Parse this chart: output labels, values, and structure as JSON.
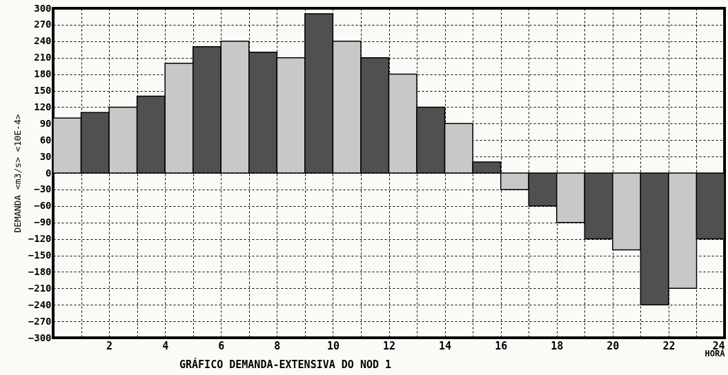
{
  "chart_data": {
    "type": "histogram",
    "title": "GRÁFICO DEMANDA-EXTENSIVA DO NOD 1",
    "xlabel": "HORA",
    "ylabel": "DEMANDA  <m3/s>  <10E-4>",
    "bins": [
      0,
      1,
      2,
      3,
      4,
      5,
      6,
      7,
      8,
      9,
      10,
      11,
      12,
      13,
      14,
      15,
      16,
      17,
      18,
      19,
      20,
      21,
      22,
      23,
      24
    ],
    "values": [
      100,
      110,
      120,
      140,
      200,
      230,
      240,
      220,
      210,
      290,
      240,
      210,
      180,
      120,
      90,
      20,
      -30,
      -60,
      -90,
      -120,
      -140,
      -240,
      -210,
      -120
    ],
    "colors": [
      "#c8c8c8",
      "#505050",
      "#c8c8c8",
      "#505050",
      "#c8c8c8",
      "#505050",
      "#c8c8c8",
      "#505050",
      "#c8c8c8",
      "#505050",
      "#c8c8c8",
      "#505050",
      "#c8c8c8",
      "#505050",
      "#c8c8c8",
      "#505050",
      "#c8c8c8",
      "#505050",
      "#c8c8c8",
      "#505050",
      "#c8c8c8",
      "#505050",
      "#c8c8c8",
      "#505050"
    ],
    "xlim": [
      0,
      24
    ],
    "xticks": [
      {
        "value": 0,
        "label": null
      },
      {
        "value": 1,
        "label": null
      },
      2,
      {
        "value": 3,
        "label": null
      },
      4,
      {
        "value": 5,
        "label": null
      },
      6,
      {
        "value": 7,
        "label": null
      },
      8,
      {
        "value": 9,
        "label": null
      },
      10,
      {
        "value": 11,
        "label": null
      },
      12,
      {
        "value": 13,
        "label": null
      },
      14,
      {
        "value": 15,
        "label": null
      },
      16,
      {
        "value": 17,
        "label": null
      },
      18,
      {
        "value": 19,
        "label": null
      },
      20,
      {
        "value": 21,
        "label": null
      },
      22,
      {
        "value": 23,
        "label": null
      },
      24
    ],
    "ylim": [
      -300,
      300
    ],
    "yticks": [
      -300,
      -270,
      -240,
      -210,
      -180,
      -150,
      -120,
      -90,
      -60,
      -30,
      0,
      30,
      60,
      90,
      120,
      150,
      180,
      210,
      240,
      270,
      300
    ],
    "grid": true
  }
}
